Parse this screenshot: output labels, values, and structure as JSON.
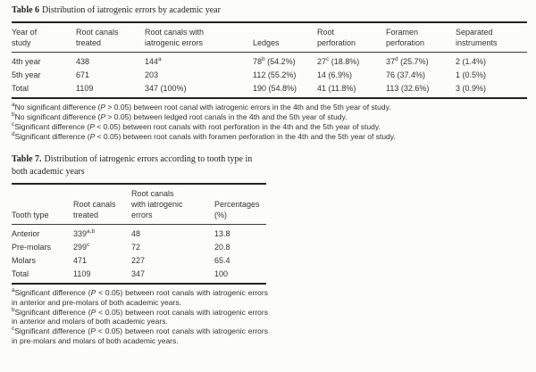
{
  "table6": {
    "title_label": "Table 6",
    "title_text": "Distribution of iatrogenic errors by academic year",
    "columns": [
      "Year of\nstudy",
      "Root canals\ntreated",
      "Root canals with\niatrogenic errors",
      "Ledges",
      "Root\nperforation",
      "Foramen\nperforation",
      "Separated\ninstruments"
    ],
    "rows": [
      [
        "4th year",
        "438",
        "144^{a}",
        "78^{b} (54.2%)",
        "27^{c} (18.8%)",
        "37^{d} (25.7%)",
        "2 (1.4%)"
      ],
      [
        "5th year",
        "671",
        "203",
        "112 (55.2%)",
        "14 (6.9%)",
        "76 (37.4%)",
        "1 (0.5%)"
      ],
      [
        "Total",
        "1109",
        "347 (100%)",
        "190 (54.8%)",
        "41 (11.8%)",
        "113 (32.6%)",
        "3 (0.9%)"
      ]
    ],
    "footnotes": [
      "^{a}No significant difference (*P* > 0.05) between root canal with iatrogenic errors in the 4th and the 5th year of study.",
      "^{b}No significant difference (*P* > 0.05) between ledged root canals in the 4th and the 5th year of study.",
      "^{c}Significant difference (*P* < 0.05) between root canals with root perforation in the 4th and the 5th year of study.",
      "^{d}Significant difference (*P* < 0.05) between root canals with foramen perforation in the 4th and the 5th year of study."
    ]
  },
  "table7": {
    "title_label": "Table 7.",
    "title_text": "Distribution of iatrogenic errors according to tooth type in both academic years",
    "columns": [
      "Tooth type",
      "Root canals\ntreated",
      "Root canals\nwith iatrogenic\nerrors",
      "Percentages\n(%)"
    ],
    "rows": [
      [
        "Anterior",
        "339^{a,b}",
        "48",
        "13.8"
      ],
      [
        "Pre-molars",
        "299^{c}",
        "72",
        "20.8"
      ],
      [
        "Molars",
        "471",
        "227",
        "65.4"
      ],
      [
        "Total",
        "1109",
        "347",
        "100"
      ]
    ],
    "footnotes": [
      "^{a}Significant difference (*P* < 0.05) between root canals with iatrogenic errors in anterior and pre-molars of both academic years.",
      "^{b}Significant difference (*P* < 0.05) between root canals with iatrogenic errors in anterior and molars of both academic years.",
      "^{c}Significant difference (*P* < 0.05) between root canals with iatrogenic errors in pre-molars and molars of both academic years."
    ]
  }
}
